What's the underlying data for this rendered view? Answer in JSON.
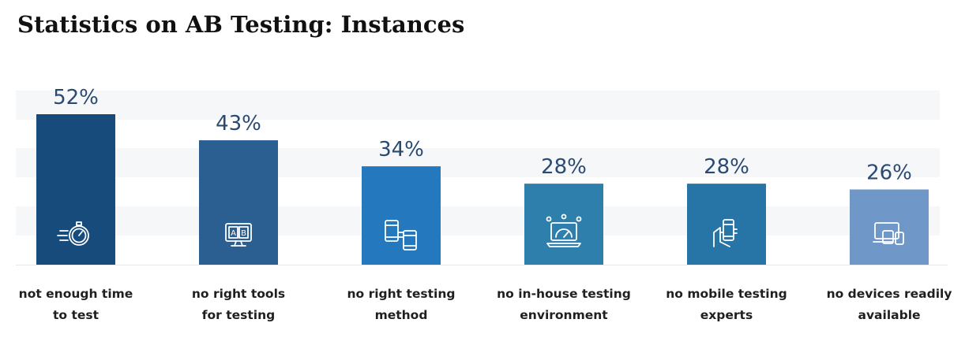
{
  "title": "Statistics on AB Testing: Instances",
  "chart_data": {
    "type": "bar",
    "title": "Statistics on AB Testing: Instances",
    "xlabel": "",
    "ylabel": "",
    "ylim": [
      0,
      55
    ],
    "grid": false,
    "legend": "none",
    "categories": [
      [
        "not enough time",
        "to test"
      ],
      [
        "no right tools",
        "for testing"
      ],
      [
        "no right testing",
        "method"
      ],
      [
        "no in-house testing",
        "environment"
      ],
      [
        "no mobile testing",
        "experts"
      ],
      [
        "no devices readily",
        "available"
      ]
    ],
    "values": [
      52,
      43,
      34,
      28,
      28,
      26
    ],
    "value_labels": [
      "52%",
      "43%",
      "34%",
      "28%",
      "28%",
      "26%"
    ],
    "icons": [
      "stopwatch-icon",
      "ab-monitor-icon",
      "devices-sync-icon",
      "speedometer-laptop-icon",
      "hand-phone-icon",
      "devices-icon"
    ],
    "colors": [
      "#164b7b",
      "#2b5f92",
      "#2478be",
      "#2f7fac",
      "#2774a6",
      "#6f98c9"
    ]
  }
}
